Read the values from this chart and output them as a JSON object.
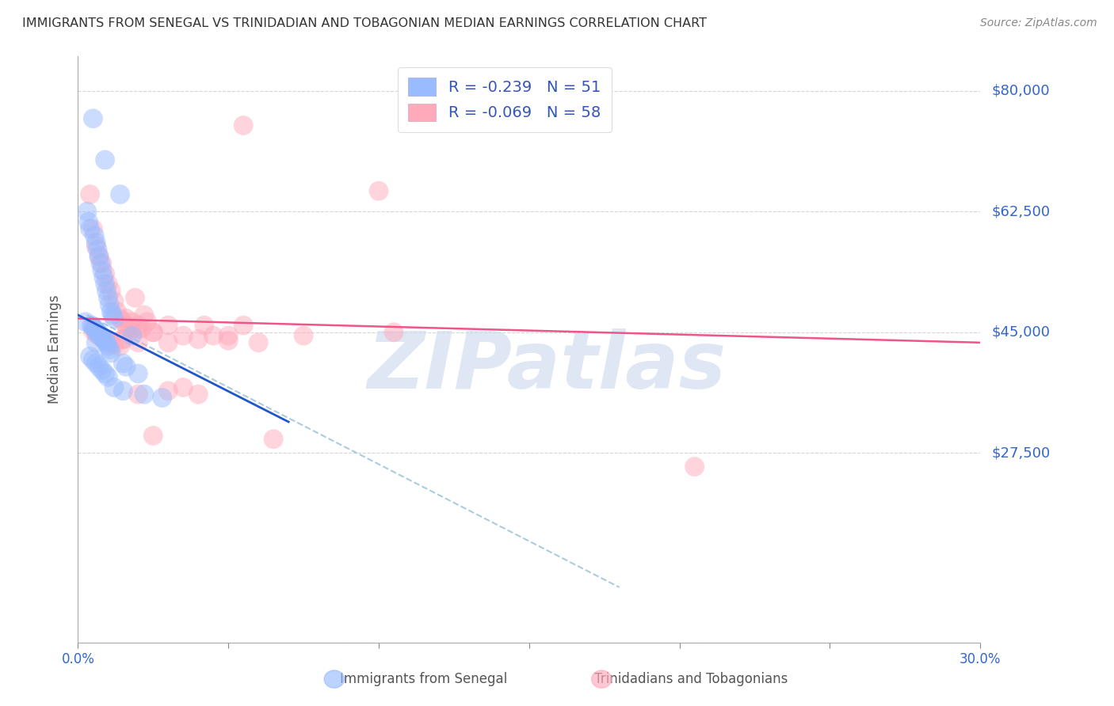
{
  "title": "IMMIGRANTS FROM SENEGAL VS TRINIDADIAN AND TOBAGONIAN MEDIAN EARNINGS CORRELATION CHART",
  "source": "Source: ZipAtlas.com",
  "ylabel": "Median Earnings",
  "yticks": [
    0,
    27500,
    45000,
    62500,
    80000
  ],
  "ytick_labels": [
    "",
    "$27,500",
    "$45,000",
    "$62,500",
    "$80,000"
  ],
  "xmin": 0.0,
  "xmax": 30.0,
  "ymin": 0,
  "ymax": 85000,
  "series1_label": "Immigrants from Senegal",
  "series1_color": "#99bbff",
  "series1_R": "-0.239",
  "series1_N": "51",
  "series2_label": "Trinidadians and Tobagonians",
  "series2_color": "#ffaabb",
  "series2_R": "-0.069",
  "series2_N": "58",
  "watermark": "ZIPatlas",
  "watermark_color": "#ccd8ee",
  "background_color": "#ffffff",
  "grid_color": "#cccccc",
  "title_color": "#333333",
  "axis_label_color": "#3366cc",
  "legend_text_color": "#3355bb",
  "series1_scatter_x": [
    0.5,
    0.9,
    1.4,
    0.3,
    0.35,
    0.4,
    0.55,
    0.6,
    0.65,
    0.7,
    0.75,
    0.8,
    0.85,
    0.9,
    0.95,
    1.0,
    1.05,
    1.1,
    1.15,
    1.2,
    0.25,
    0.45,
    0.5,
    0.55,
    0.6,
    0.65,
    0.7,
    0.75,
    0.8,
    0.85,
    0.9,
    0.95,
    1.0,
    1.05,
    1.1,
    1.5,
    1.6,
    2.0,
    0.4,
    0.5,
    0.6,
    0.7,
    0.8,
    0.9,
    1.0,
    1.2,
    1.5,
    2.2,
    2.8,
    0.6,
    1.8
  ],
  "series1_scatter_y": [
    76000,
    70000,
    65000,
    62500,
    61000,
    60000,
    59000,
    58000,
    57000,
    56000,
    55000,
    54000,
    53000,
    52000,
    51000,
    50000,
    49000,
    48000,
    47500,
    47000,
    46500,
    46000,
    45800,
    45500,
    45200,
    45000,
    44800,
    44500,
    44200,
    44000,
    43800,
    43500,
    43000,
    42500,
    42000,
    40500,
    40000,
    39000,
    41500,
    41000,
    40500,
    40000,
    39500,
    39000,
    38500,
    37000,
    36500,
    36000,
    35500,
    43500,
    44500
  ],
  "series2_scatter_x": [
    0.4,
    0.5,
    0.6,
    0.7,
    0.8,
    0.9,
    1.0,
    1.1,
    1.2,
    1.3,
    1.4,
    1.5,
    1.6,
    1.7,
    1.8,
    1.9,
    2.0,
    2.1,
    2.2,
    2.3,
    0.5,
    0.6,
    0.7,
    0.8,
    0.9,
    1.0,
    1.1,
    1.2,
    1.4,
    1.6,
    1.8,
    2.0,
    2.5,
    3.0,
    3.5,
    4.0,
    4.5,
    5.0,
    6.0,
    7.5,
    10.0,
    4.2,
    5.5,
    4.0,
    3.0,
    2.0,
    3.5,
    1.5,
    2.5,
    6.5,
    20.5,
    5.5,
    10.5,
    3.0,
    5.0,
    1.5,
    2.0,
    2.5
  ],
  "series2_scatter_y": [
    65000,
    60000,
    57500,
    56000,
    55000,
    53500,
    52000,
    51000,
    49500,
    48000,
    47000,
    46500,
    46000,
    45800,
    45500,
    50000,
    46000,
    45500,
    47500,
    46500,
    45200,
    44800,
    44500,
    44200,
    44000,
    43800,
    43500,
    43200,
    43000,
    47000,
    46500,
    45500,
    45000,
    46000,
    44500,
    44000,
    44500,
    43800,
    43500,
    44500,
    65500,
    46000,
    46000,
    36000,
    36500,
    36000,
    37000,
    44000,
    45000,
    29500,
    25500,
    75000,
    45000,
    43500,
    44500,
    44000,
    43500,
    30000
  ],
  "reg_line1_x": [
    0.0,
    7.0
  ],
  "reg_line1_y": [
    47500,
    32000
  ],
  "reg_line2_x": [
    0.0,
    30.0
  ],
  "reg_line2_y": [
    47000,
    43500
  ],
  "dashed_line_x": [
    0.3,
    18.0
  ],
  "dashed_line_y": [
    47500,
    8000
  ]
}
